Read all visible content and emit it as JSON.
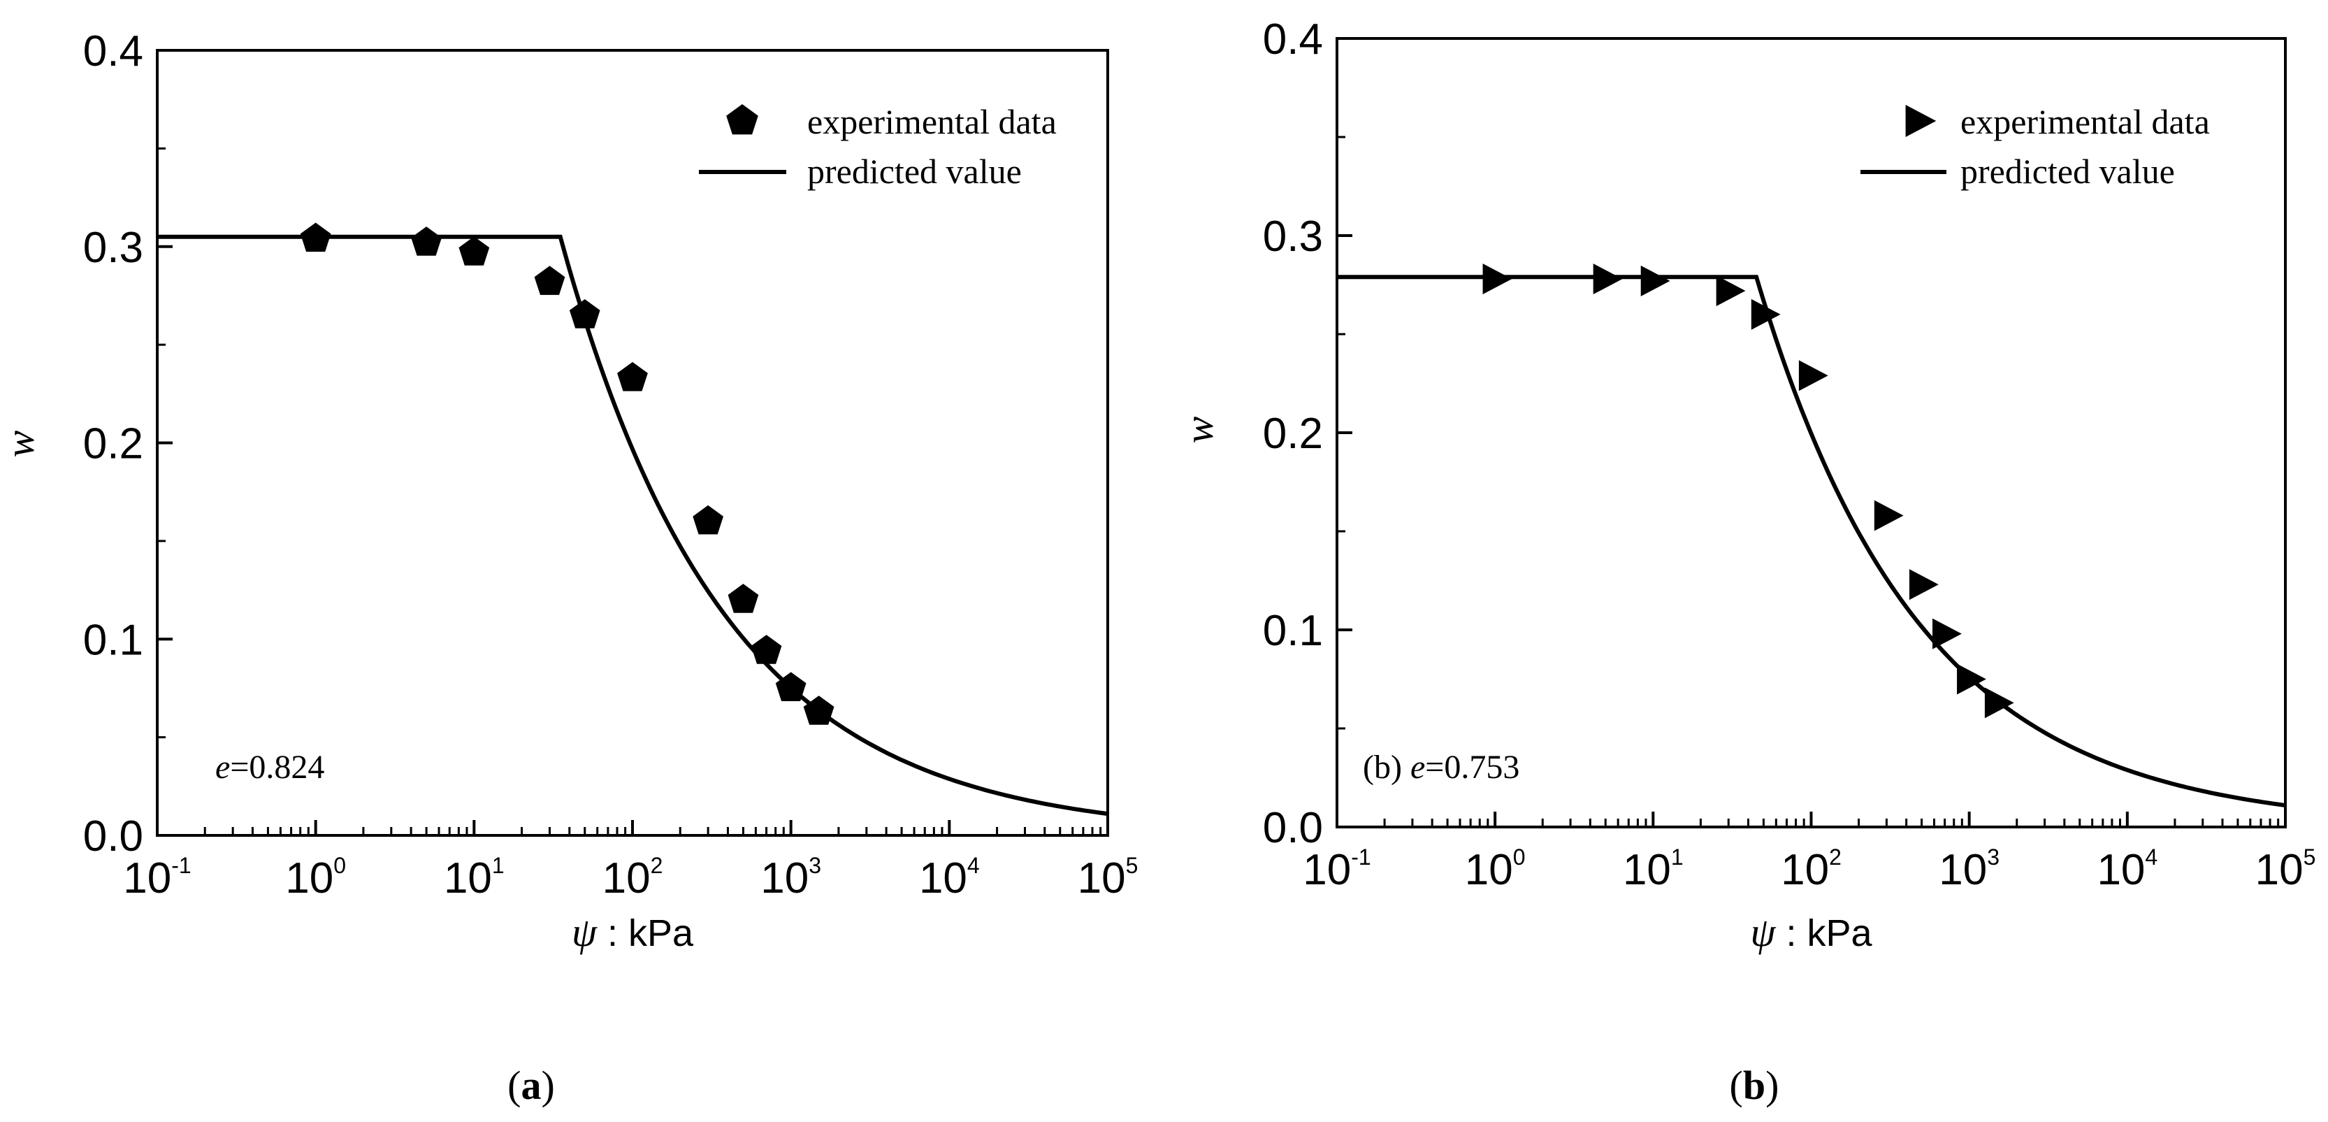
{
  "chart_data": [
    {
      "panel": "a",
      "type": "scatter",
      "caption": {
        "open": "(",
        "letter": "a",
        "close": ")"
      },
      "xscale": "log",
      "xlim": [
        0.1,
        100000
      ],
      "ylim": [
        0.0,
        0.4
      ],
      "xticks": [
        {
          "base": "10",
          "exp": "-1"
        },
        {
          "base": "10",
          "exp": "0"
        },
        {
          "base": "10",
          "exp": "1"
        },
        {
          "base": "10",
          "exp": "2"
        },
        {
          "base": "10",
          "exp": "3"
        },
        {
          "base": "10",
          "exp": "4"
        },
        {
          "base": "10",
          "exp": "5"
        }
      ],
      "yticks": [
        "0.0",
        "0.1",
        "0.2",
        "0.3",
        "0.4"
      ],
      "xlabel_symbol": "ψ",
      "xlabel_unit": " : kPa",
      "ylabel": "w",
      "legend_position": "top-right",
      "legend": [
        {
          "label": "experimental data",
          "marker": "pentagon"
        },
        {
          "label": "predicted value",
          "marker": "line"
        }
      ],
      "annotation": {
        "prefix": "",
        "var": "e",
        "value": "=0.824"
      },
      "experimental": {
        "x": [
          1,
          5,
          10,
          30,
          50,
          100,
          300,
          500,
          700,
          1000,
          1500
        ],
        "y": [
          0.304,
          0.302,
          0.297,
          0.282,
          0.265,
          0.233,
          0.16,
          0.12,
          0.094,
          0.075,
          0.063
        ]
      },
      "predicted": {
        "w_sat": 0.305,
        "air_entry_kPa": 35,
        "end_value": 0.011,
        "x_max": 100000
      }
    },
    {
      "panel": "b",
      "type": "scatter",
      "caption": {
        "open": "(",
        "letter": "b",
        "close": ")"
      },
      "xscale": "log",
      "xlim": [
        0.1,
        100000
      ],
      "ylim": [
        0.0,
        0.4
      ],
      "xticks": [
        {
          "base": "10",
          "exp": "-1"
        },
        {
          "base": "10",
          "exp": "0"
        },
        {
          "base": "10",
          "exp": "1"
        },
        {
          "base": "10",
          "exp": "2"
        },
        {
          "base": "10",
          "exp": "3"
        },
        {
          "base": "10",
          "exp": "4"
        },
        {
          "base": "10",
          "exp": "5"
        }
      ],
      "yticks": [
        "0.0",
        "0.1",
        "0.2",
        "0.3",
        "0.4"
      ],
      "xlabel_symbol": "ψ",
      "xlabel_unit": " : kPa",
      "ylabel": "w",
      "legend_position": "top-right",
      "legend": [
        {
          "label": "experimental data",
          "marker": "triangle-right"
        },
        {
          "label": "predicted value",
          "marker": "line"
        }
      ],
      "annotation": {
        "prefix": "(b) ",
        "var": "e",
        "value": "=0.753"
      },
      "experimental": {
        "x": [
          1,
          5,
          10,
          30,
          50,
          100,
          300,
          500,
          700,
          1000,
          1500
        ],
        "y": [
          0.278,
          0.278,
          0.277,
          0.272,
          0.26,
          0.229,
          0.158,
          0.123,
          0.098,
          0.075,
          0.063
        ]
      },
      "predicted": {
        "w_sat": 0.279,
        "air_entry_kPa": 45,
        "end_value": 0.011,
        "x_max": 100000
      }
    }
  ]
}
